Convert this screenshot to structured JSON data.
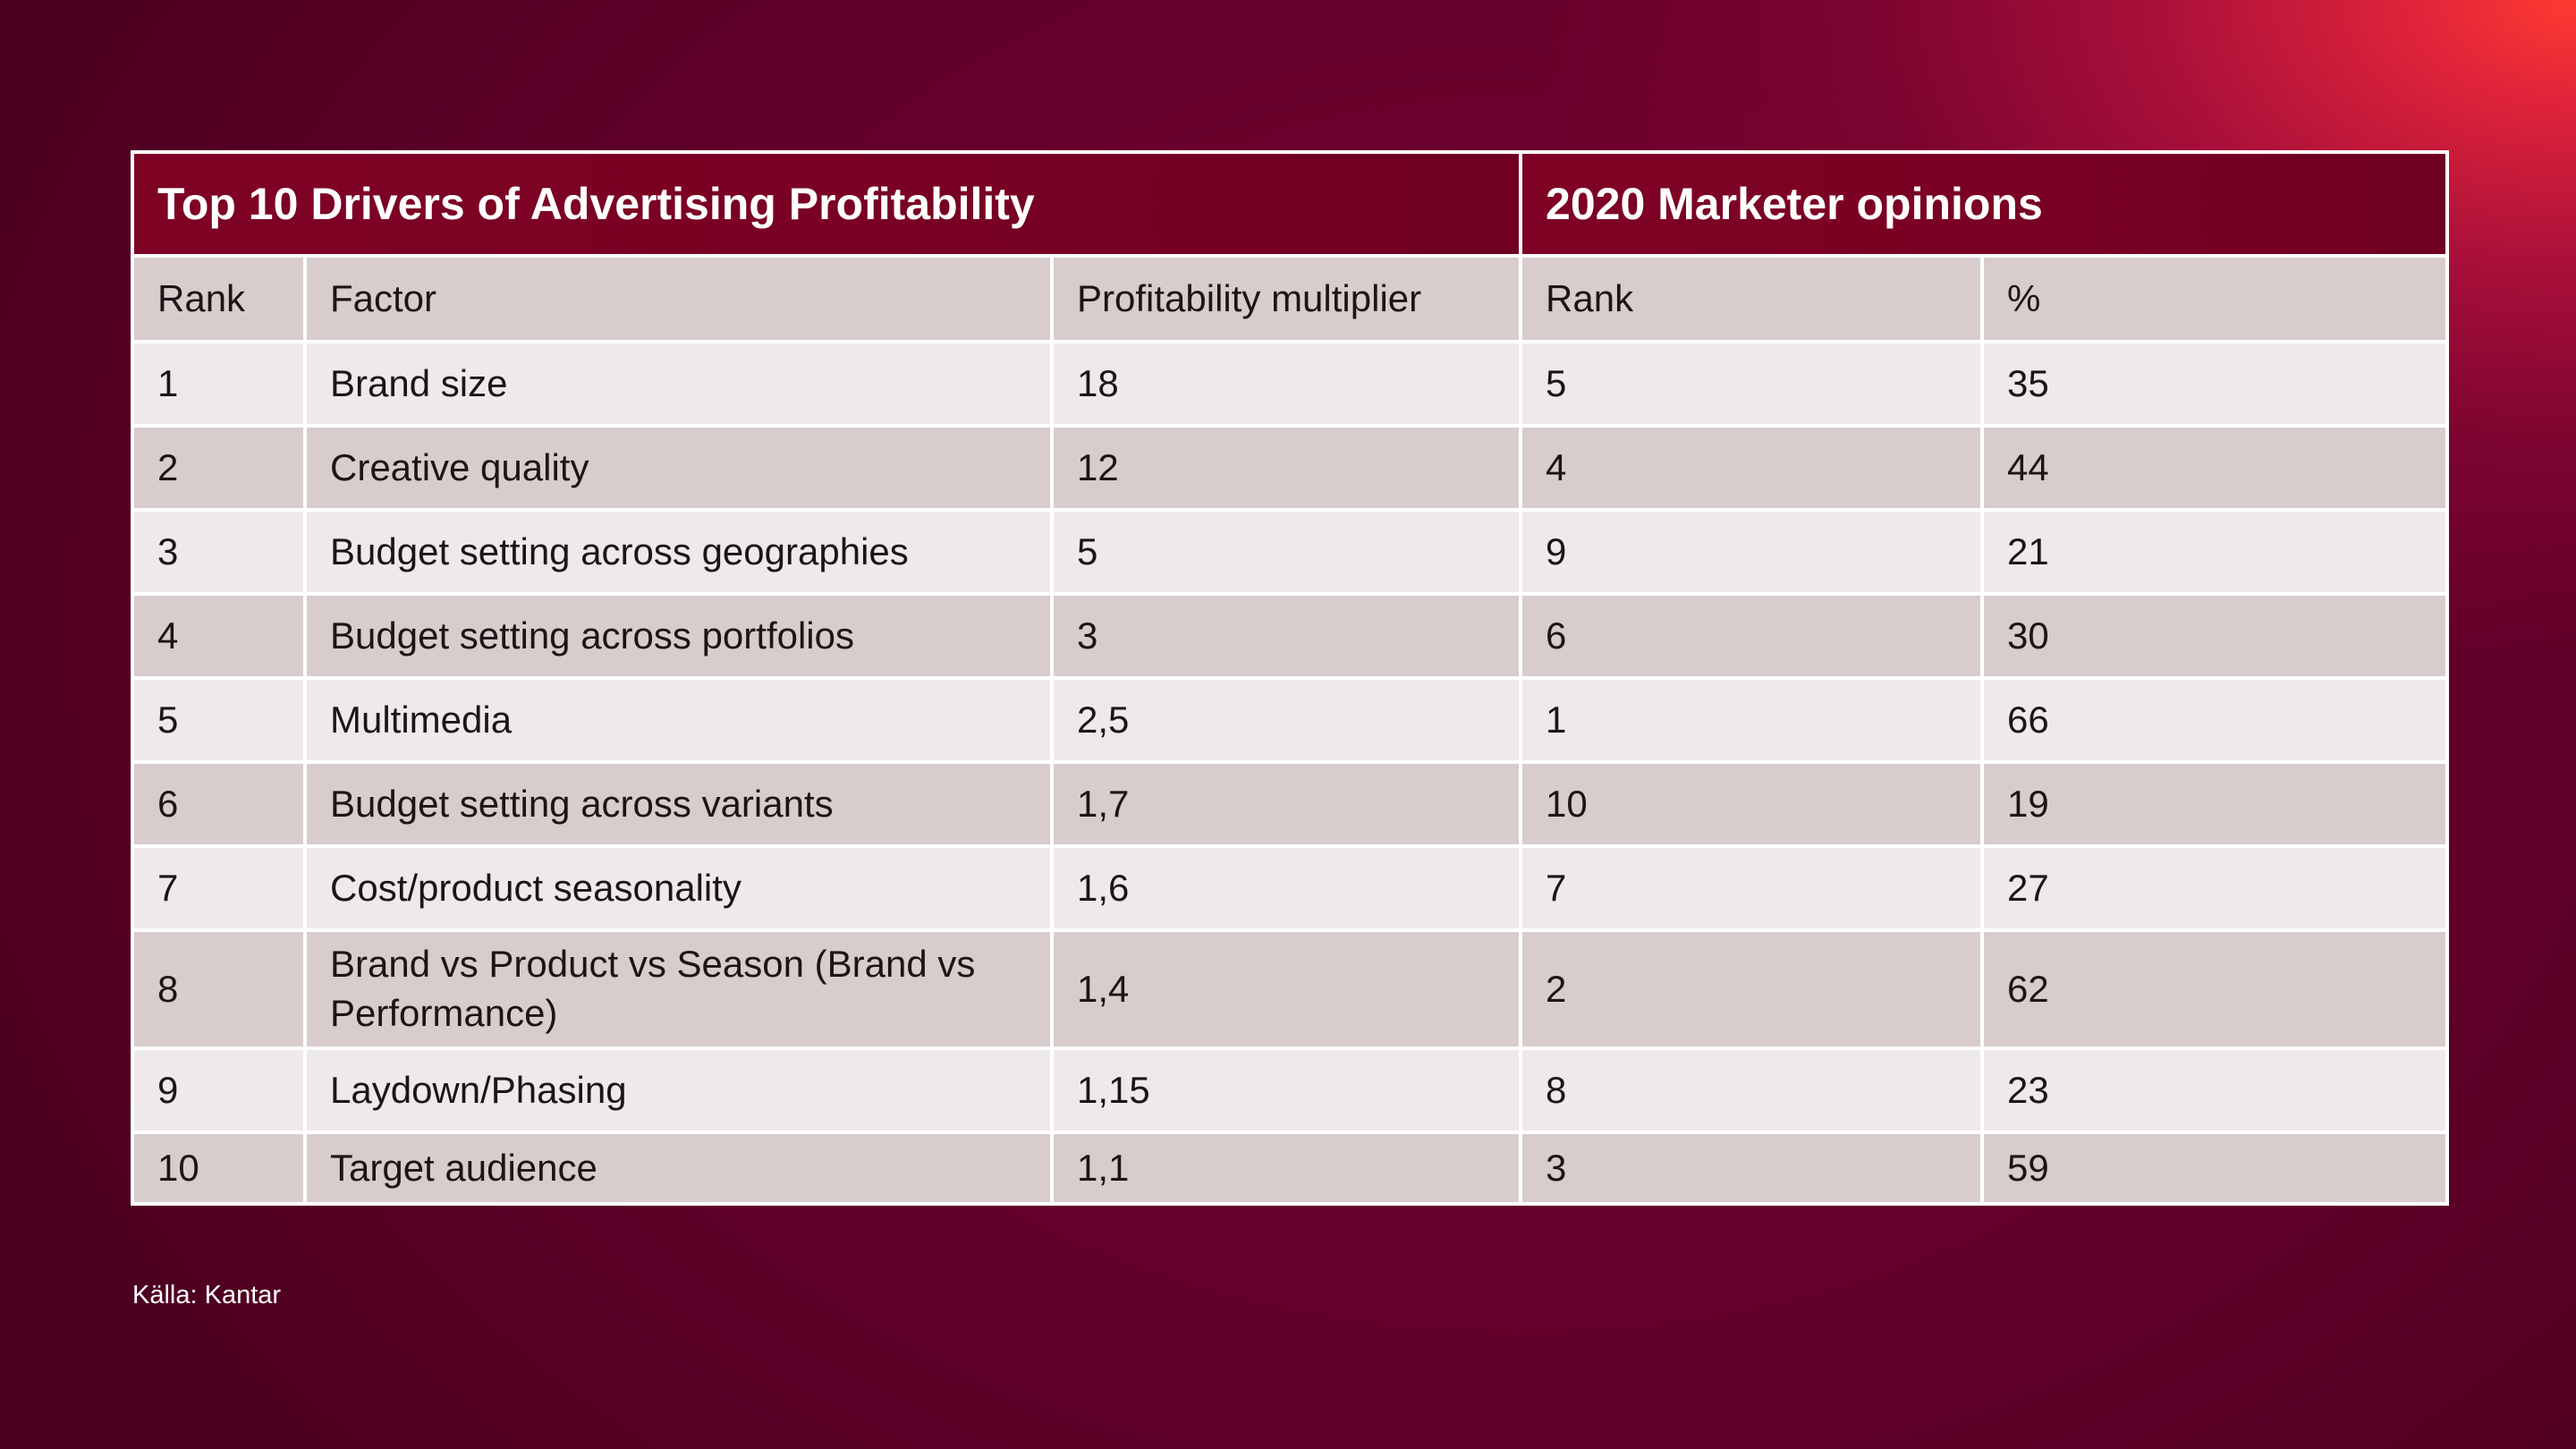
{
  "table": {
    "title_left": "Top 10 Drivers of Advertising Profitability",
    "title_right": "2020 Marketer opinions",
    "columns": [
      "Rank",
      "Factor",
      "Profitability multiplier",
      "Rank",
      "%"
    ],
    "rows": [
      {
        "rank": "1",
        "factor": "Brand size",
        "multiplier": "18",
        "opinion_rank": "5",
        "percent": "35"
      },
      {
        "rank": "2",
        "factor": "Creative quality",
        "multiplier": "12",
        "opinion_rank": "4",
        "percent": "44"
      },
      {
        "rank": "3",
        "factor": "Budget setting across geographies",
        "multiplier": "5",
        "opinion_rank": "9",
        "percent": "21"
      },
      {
        "rank": "4",
        "factor": "Budget setting across portfolios",
        "multiplier": "3",
        "opinion_rank": "6",
        "percent": "30"
      },
      {
        "rank": "5",
        "factor": "Multimedia",
        "multiplier": "2,5",
        "opinion_rank": "1",
        "percent": "66"
      },
      {
        "rank": "6",
        "factor": "Budget setting across variants",
        "multiplier": "1,7",
        "opinion_rank": "10",
        "percent": "19"
      },
      {
        "rank": "7",
        "factor": "Cost/product seasonality",
        "multiplier": "1,6",
        "opinion_rank": "7",
        "percent": "27"
      },
      {
        "rank": "8",
        "factor": "Brand vs Product vs Season (Brand vs Performance)",
        "multiplier": "1,4",
        "opinion_rank": "2",
        "percent": "62"
      },
      {
        "rank": "9",
        "factor": "Laydown/Phasing",
        "multiplier": "1,15",
        "opinion_rank": "8",
        "percent": "23"
      },
      {
        "rank": "10",
        "factor": "Target audience",
        "multiplier": "1,1",
        "opinion_rank": "3",
        "percent": "59"
      }
    ]
  },
  "source": "Källa: Kantar",
  "colors": {
    "title_row": "#7a0123",
    "header_row": "#d8cccd",
    "row_light": "#eeeae9",
    "row_dark": "#d8cccd",
    "background_dark": "#520022",
    "background_accent": "#ff3b30"
  }
}
